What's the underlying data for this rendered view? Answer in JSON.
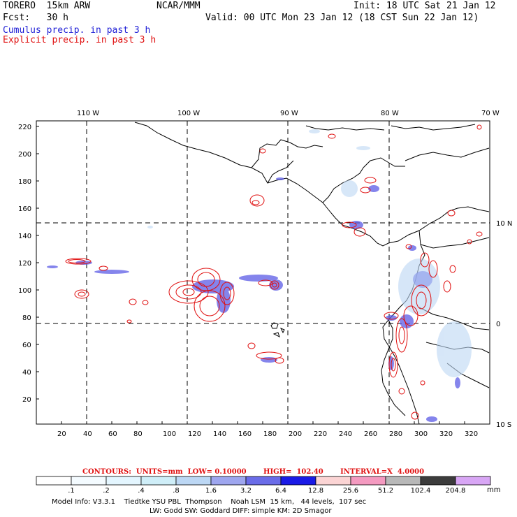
{
  "header": {
    "model": "TORERO  15km ARW",
    "org": "NCAR/MMM",
    "init": "Init: 18 UTC Sat 21 Jan 12",
    "fcst": "Fcst:   30 h",
    "valid": "Valid: 00 UTC Mon 23 Jan 12 (18 CST Sun 22 Jan 12)",
    "cumulus": "Cumulus precip. in past 3 h",
    "explicit": "Explicit precip. in past 3 h"
  },
  "axes": {
    "lon_labels": [
      "110 W",
      "100 W",
      "90 W",
      "80 W",
      "70 W"
    ],
    "lat_labels": [
      "10 N",
      "0",
      "10 S"
    ],
    "x_ticks": [
      "20",
      "40",
      "60",
      "80",
      "100",
      "120",
      "140",
      "160",
      "180",
      "200",
      "220",
      "240",
      "260",
      "280",
      "300",
      "320"
    ],
    "y_ticks": [
      "220",
      "200",
      "180",
      "160",
      "140",
      "120",
      "100",
      "80",
      "60",
      "40",
      "20"
    ]
  },
  "contours": "CONTOURS:  UNITS=mm  LOW= 0.10000       HIGH=  102.40       INTERVAL=X  4.0000",
  "colorbar": {
    "labels": [
      ".1",
      ".2",
      ".4",
      ".8",
      "1.6",
      "3.2",
      "6.4",
      "12.8",
      "25.6",
      "51.2",
      "102.4",
      "204.8"
    ],
    "unit": "mm",
    "colors": [
      "#ffffff",
      "#f4fbff",
      "#e4f6ff",
      "#cfeef8",
      "#bcd7f4",
      "#9ea6ef",
      "#6a6ce8",
      "#1a1ae6",
      "#fbd4d4",
      "#f49ac0",
      "#b8b8b8",
      "#3c3c3c",
      "#d8a6f5"
    ]
  },
  "footer": {
    "line1": "Model Info: V3.3.1    Tiedtke YSU PBL  Thompson    Noah LSM  15 km,   44 levels,  107 sec",
    "line2": "LW: Godd SW: Goddard DIFF: simple KM: 2D Smagor"
  }
}
